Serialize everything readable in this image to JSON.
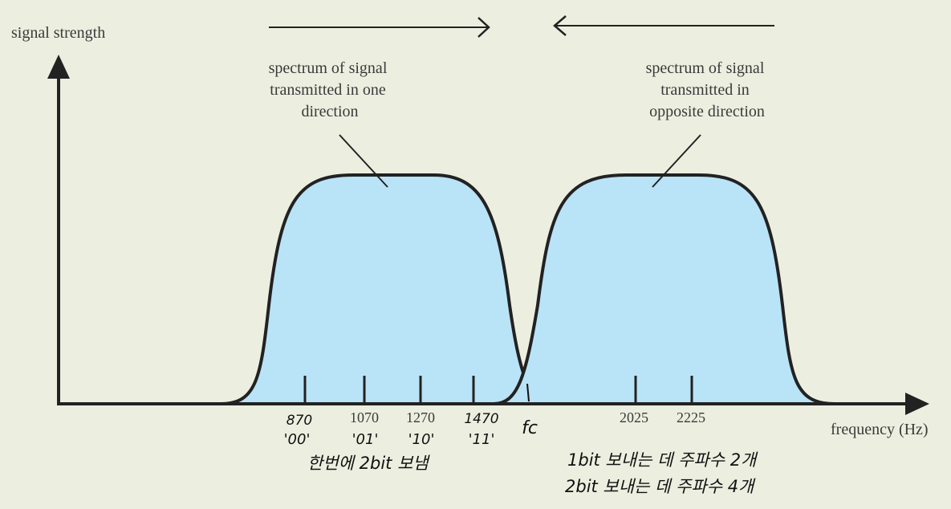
{
  "y_axis_label": "signal strength",
  "x_axis_label": "frequency (Hz)",
  "spectrum_left_label": [
    "spectrum of signal",
    "transmitted in one",
    "direction"
  ],
  "spectrum_right_label": [
    "spectrum of signal",
    "transmitted in",
    "opposite direction"
  ],
  "ticks": {
    "t870": "870",
    "t1070": "1070",
    "t1270": "1270",
    "t1470": "1470",
    "t2025": "2025",
    "t2225": "2225",
    "fc": "fc"
  },
  "symbols": {
    "s00": "'00'",
    "s01": "'01'",
    "s10": "'10'",
    "s11": "'11'"
  },
  "notes": {
    "once_2bit": "한번에 2bit 보냄",
    "line1": "1bit 보내는 데 주파수 2개",
    "line2": "2bit 보내는 데 주파수 4개"
  },
  "colors": {
    "fill": "#b9e3f7",
    "stroke": "#222222",
    "background": "#ecefe0"
  }
}
